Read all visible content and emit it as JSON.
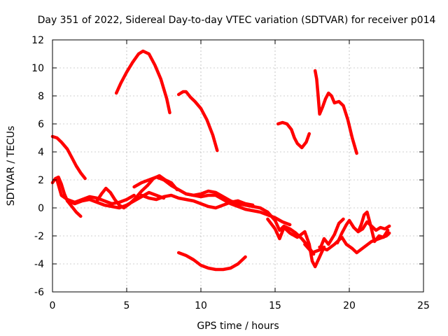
{
  "chart_data": {
    "type": "scatter",
    "title": "Day 351 of 2022, Sidereal Day-to-day VTEC variation (SDTVAR) for receiver p014",
    "xlabel": "GPS time / hours",
    "ylabel": "SDTVAR / TECUs",
    "xlim": [
      0,
      25
    ],
    "ylim": [
      -6,
      12
    ],
    "xticks": [
      0,
      5,
      10,
      15,
      20,
      25
    ],
    "yticks": [
      -6,
      -4,
      -2,
      0,
      2,
      4,
      6,
      8,
      10,
      12
    ],
    "xtick_labels": [
      "0",
      "5",
      "10",
      "15",
      "20",
      "25"
    ],
    "ytick_labels": [
      "-6",
      "-4",
      "-2",
      "0",
      "2",
      "4",
      "6",
      "8",
      "10",
      "12"
    ],
    "grid": true,
    "marker": "+",
    "color": "#ff0000",
    "series": [
      {
        "name": "trace-1",
        "x": [
          0.0,
          0.3,
          0.6,
          1.0,
          1.3,
          1.6,
          1.9,
          2.2
        ],
        "y": [
          5.1,
          5.0,
          4.7,
          4.2,
          3.6,
          3.0,
          2.5,
          2.1
        ]
      },
      {
        "name": "trace-2",
        "x": [
          4.3,
          4.6,
          5.0,
          5.4,
          5.8,
          6.1,
          6.5,
          6.9,
          7.3,
          7.7,
          7.9
        ],
        "y": [
          8.2,
          8.9,
          9.7,
          10.4,
          11.0,
          11.2,
          11.0,
          10.2,
          9.2,
          7.8,
          6.8
        ]
      },
      {
        "name": "trace-3",
        "x": [
          8.5,
          8.8,
          9.0,
          9.3,
          9.6,
          10.0,
          10.4,
          10.8,
          11.1
        ],
        "y": [
          8.1,
          8.3,
          8.3,
          7.9,
          7.6,
          7.1,
          6.3,
          5.2,
          4.1
        ]
      },
      {
        "name": "trace-4",
        "x": [
          8.5,
          9.0,
          9.5,
          10.0,
          10.5,
          11.0,
          11.5,
          12.0,
          12.5,
          13.0
        ],
        "y": [
          -3.2,
          -3.4,
          -3.7,
          -4.1,
          -4.3,
          -4.4,
          -4.4,
          -4.3,
          -4.0,
          -3.5
        ]
      },
      {
        "name": "trace-5",
        "x": [
          15.2,
          15.5,
          15.8,
          16.1,
          16.3,
          16.5,
          16.8,
          17.1,
          17.3
        ],
        "y": [
          6.0,
          6.1,
          6.0,
          5.6,
          5.0,
          4.6,
          4.3,
          4.7,
          5.3
        ]
      },
      {
        "name": "trace-6",
        "x": [
          17.7,
          17.8,
          17.9,
          18.0,
          18.2,
          18.4,
          18.6,
          18.8,
          19.0,
          19.3,
          19.6,
          19.9,
          20.2,
          20.5
        ],
        "y": [
          9.8,
          9.2,
          8.0,
          6.7,
          7.2,
          7.8,
          8.2,
          8.0,
          7.5,
          7.6,
          7.3,
          6.3,
          5.0,
          3.9
        ]
      },
      {
        "name": "trace-7",
        "x": [
          0.0,
          0.2,
          0.4,
          0.6,
          0.8,
          1.0,
          1.3,
          1.6,
          1.9
        ],
        "y": [
          1.8,
          2.1,
          2.2,
          1.7,
          1.0,
          0.5,
          0.1,
          -0.3,
          -0.6
        ]
      },
      {
        "name": "trace-8",
        "x": [
          0.3,
          0.6,
          1.0,
          1.5,
          2.0,
          2.5,
          3.0,
          3.5,
          4.0,
          4.5,
          5.0,
          5.5
        ],
        "y": [
          2.0,
          0.9,
          0.6,
          0.4,
          0.6,
          0.8,
          0.7,
          0.5,
          0.3,
          0.4,
          0.6,
          0.9
        ]
      },
      {
        "name": "trace-9",
        "x": [
          1.0,
          1.5,
          2.0,
          2.5,
          3.0,
          3.5,
          4.0,
          4.5,
          5.0,
          5.5,
          6.0,
          6.5,
          7.0,
          7.5
        ],
        "y": [
          0.5,
          0.3,
          0.5,
          0.6,
          0.4,
          0.2,
          0.1,
          0.0,
          0.2,
          0.5,
          0.8,
          1.1,
          0.9,
          0.7
        ]
      },
      {
        "name": "trace-10",
        "x": [
          3.0,
          3.3,
          3.6,
          3.9,
          4.2,
          4.5,
          4.8,
          5.2,
          5.6,
          6.0,
          6.4,
          6.8,
          7.2,
          7.6,
          8.0,
          8.4
        ],
        "y": [
          0.5,
          1.0,
          1.4,
          1.1,
          0.6,
          0.2,
          0.0,
          0.3,
          0.7,
          1.2,
          1.6,
          2.1,
          2.3,
          2.0,
          1.8,
          1.3
        ]
      },
      {
        "name": "trace-11",
        "x": [
          5.5,
          6.0,
          6.5,
          7.0,
          7.5,
          8.0,
          8.5,
          9.0,
          9.5,
          10.0,
          10.5,
          11.0,
          11.5,
          12.0,
          12.5,
          13.0
        ],
        "y": [
          1.5,
          1.8,
          2.0,
          2.2,
          2.0,
          1.6,
          1.3,
          1.0,
          0.9,
          1.0,
          1.2,
          1.1,
          0.8,
          0.5,
          0.3,
          0.2
        ]
      },
      {
        "name": "trace-12",
        "x": [
          6.0,
          6.5,
          7.0,
          7.5,
          8.0,
          8.5,
          9.0,
          9.5,
          10.0,
          10.5,
          11.0,
          11.5,
          12.0,
          12.5,
          13.0,
          13.5
        ],
        "y": [
          0.9,
          0.7,
          0.6,
          0.8,
          0.9,
          0.7,
          0.6,
          0.5,
          0.3,
          0.1,
          0.0,
          0.2,
          0.4,
          0.5,
          0.3,
          0.2
        ]
      },
      {
        "name": "trace-13",
        "x": [
          9.0,
          9.5,
          10.0,
          10.5,
          11.0,
          11.5,
          12.0,
          12.5,
          13.0,
          13.5,
          14.0,
          14.5,
          15.0,
          15.5,
          16.0
        ],
        "y": [
          1.0,
          0.9,
          0.8,
          0.9,
          0.9,
          0.6,
          0.3,
          0.1,
          -0.1,
          -0.2,
          -0.3,
          -0.5,
          -0.7,
          -1.0,
          -1.2
        ]
      },
      {
        "name": "trace-14",
        "x": [
          12.0,
          12.5,
          13.0,
          13.5,
          14.0,
          14.5,
          15.0,
          15.3,
          15.6,
          16.0,
          16.4,
          16.8,
          17.2,
          17.6
        ],
        "y": [
          0.4,
          0.5,
          0.2,
          0.1,
          0.0,
          -0.3,
          -0.9,
          -1.6,
          -1.3,
          -1.5,
          -1.8,
          -2.2,
          -2.7,
          -3.3
        ]
      },
      {
        "name": "trace-15",
        "x": [
          14.5,
          15.0,
          15.3,
          15.6,
          16.0,
          16.5,
          17.0,
          17.3,
          17.5,
          17.7,
          18.0,
          18.3
        ],
        "y": [
          -0.8,
          -1.5,
          -2.2,
          -1.4,
          -1.8,
          -2.1,
          -1.7,
          -2.6,
          -3.8,
          -4.2,
          -3.5,
          -2.8
        ]
      },
      {
        "name": "trace-16",
        "x": [
          18.0,
          18.5,
          19.0,
          19.5,
          19.8,
          20.2,
          20.5,
          21.0,
          21.5,
          22.0,
          22.5,
          22.7
        ],
        "y": [
          -2.8,
          -3.0,
          -2.6,
          -2.1,
          -2.6,
          -2.9,
          -3.2,
          -2.8,
          -2.4,
          -2.2,
          -2.0,
          -1.8
        ]
      },
      {
        "name": "trace-17",
        "x": [
          19.2,
          19.5,
          19.8,
          20.0,
          20.3,
          20.6,
          20.9,
          21.2,
          21.5,
          21.8,
          22.1,
          22.4,
          22.7
        ],
        "y": [
          -2.5,
          -1.8,
          -1.2,
          -0.9,
          -1.4,
          -1.7,
          -1.5,
          -1.0,
          -1.3,
          -1.6,
          -1.4,
          -1.5,
          -1.3
        ]
      },
      {
        "name": "trace-18",
        "x": [
          20.6,
          20.8,
          21.0,
          21.2,
          21.4,
          21.7,
          22.0,
          22.3,
          22.6
        ],
        "y": [
          -1.7,
          -1.2,
          -0.5,
          -0.3,
          -1.1,
          -2.4,
          -2.0,
          -2.1,
          -1.6
        ]
      },
      {
        "name": "trace-19",
        "x": [
          17.0,
          17.5,
          18.0,
          18.3,
          18.6,
          19.0,
          19.3,
          19.6
        ],
        "y": [
          -2.6,
          -3.2,
          -3.0,
          -2.2,
          -2.6,
          -1.9,
          -1.1,
          -0.8
        ]
      }
    ]
  }
}
